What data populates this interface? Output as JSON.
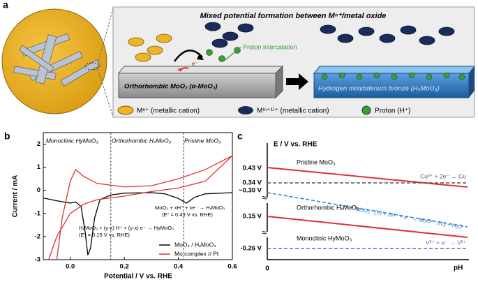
{
  "panel_a": {
    "label": "a",
    "title": "Mixed potential formation between Mⁿ⁺/metal oxide",
    "electron_1": "e⁻",
    "electron_2": "e⁻",
    "proton_label": "Proton intercalation",
    "slab_1": "Orthorhombic MoO₃ (α-MoO₃)",
    "slab_2": "Hydrogen molybdenum bronze (HₓMoO₃)",
    "legend": [
      "Mⁿ⁺ (metallic cation)",
      "M⁽ⁿ⁺¹⁾⁺ (metallic cation)",
      "Proton (H⁺)"
    ]
  },
  "chart_data": {
    "type": "line",
    "label": "b",
    "xlabel": "Potential / V vs. RHE",
    "ylabel": "Current / mA",
    "xlim": [
      -0.1,
      0.6
    ],
    "ylim": [
      -3,
      2.5
    ],
    "xticks": [
      {
        "value": 0,
        "label": "0.0"
      },
      0.2,
      0.4,
      0.6
    ],
    "yticks": [
      -3,
      -2,
      -1,
      0,
      1,
      2
    ],
    "vlines": [
      0.15,
      0.42
    ],
    "regions": [
      "Monoclinic HyMoO₃",
      "Orthorhombic HₓMoO₃",
      "Pristine MoO₃"
    ],
    "annotations": [
      "MoO₃ + xH⁺ + xe⁻ → HₓMoO₃",
      "(E° = 0.43 V vs. RHE)",
      "HₓMoO₃ + (y-x) H⁺ + (y-x) e⁻ → HyMoO₃",
      "(E° = 0.15 V vs. RHE)"
    ],
    "series": [
      {
        "name": "MoO₃ / HₓMoO₃",
        "color": "#000000",
        "x": [
          -0.1,
          -0.05,
          0,
          0.02,
          0.04,
          0.055,
          0.065,
          0.075,
          0.09,
          0.11,
          0.15,
          0.2,
          0.3,
          0.35,
          0.4,
          0.43,
          0.46,
          0.5,
          0.6
        ],
        "values": [
          -0.33,
          -0.45,
          -0.55,
          -0.5,
          -0.7,
          -1.8,
          -2.8,
          -2.5,
          -1.2,
          -0.4,
          -0.2,
          -0.12,
          -0.1,
          -0.15,
          -0.35,
          -0.55,
          -0.3,
          -0.15,
          -0.1
        ]
      },
      {
        "name": "Mo complex // Pt",
        "color": "#e03030",
        "x": [
          -0.05,
          -0.03,
          0,
          0.02,
          0.05,
          0.1,
          0.2,
          0.3,
          0.4,
          0.5,
          0.6,
          0.5,
          0.4,
          0.3,
          0.2,
          0.1,
          0.05,
          0,
          -0.05,
          -0.08
        ],
        "values": [
          -3,
          -1.2,
          0.4,
          0.9,
          0.6,
          0.3,
          0.15,
          0.2,
          0.5,
          0.9,
          1.5,
          0.4,
          0.1,
          -0.05,
          -0.25,
          -0.4,
          -0.6,
          -1,
          -2,
          -3
        ]
      }
    ]
  },
  "panel_c": {
    "label": "c",
    "ylabel": "E / V vs. RHE",
    "xlabel": "pH",
    "origin": "0",
    "levels": [
      "0.43 V",
      "0.34 V",
      "~0.30 V",
      "0.15 V",
      "-0.26 V"
    ],
    "phases": [
      "Pristine MoO₃",
      "Orthorhombic HₓMoO₃",
      "Monoclinic HyMoO₃"
    ],
    "reactions": [
      "Cu²⁺ + 2e⁻ → Cu",
      "MoO₂⁺ (V) + 2H⁺ + e⁻ → MoO²⁺ (IV) + H₂O",
      "V³⁺ + e⁻ → V²⁺"
    ]
  }
}
